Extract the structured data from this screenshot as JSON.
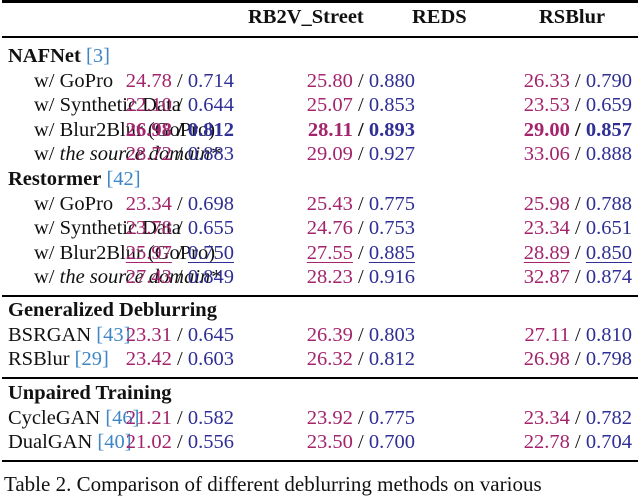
{
  "table": {
    "columns": [
      "RB2V_Street",
      "REDS",
      "RSBlur"
    ],
    "groups": [
      {
        "title": "NAFNet",
        "ref": "3",
        "rows": [
          {
            "prefix": "w/ ",
            "label": "GoPro",
            "italic": false,
            "style": "normal",
            "values": [
              [
                "24.78",
                "0.714"
              ],
              [
                "25.80",
                "0.880"
              ],
              [
                "26.33",
                "0.790"
              ]
            ]
          },
          {
            "prefix": "w/ ",
            "label": "Synthetic Data",
            "italic": false,
            "style": "normal",
            "values": [
              [
                "22.10",
                "0.644"
              ],
              [
                "25.07",
                "0.853"
              ],
              [
                "23.53",
                "0.659"
              ]
            ]
          },
          {
            "prefix": "w/ ",
            "label": "Blur2Blur (GoPro)",
            "italic": false,
            "style": "bold",
            "values": [
              [
                "26.98",
                "0.812"
              ],
              [
                "28.11",
                "0.893"
              ],
              [
                "29.00",
                "0.857"
              ]
            ]
          },
          {
            "prefix": "w/ ",
            "label": "the source domain*",
            "italic": true,
            "style": "normal",
            "values": [
              [
                "28.72",
                "0.883"
              ],
              [
                "29.09",
                "0.927"
              ],
              [
                "33.06",
                "0.888"
              ]
            ]
          }
        ]
      },
      {
        "title": "Restormer",
        "ref": "42",
        "rows": [
          {
            "prefix": "w/ ",
            "label": "GoPro",
            "italic": false,
            "style": "normal",
            "values": [
              [
                "23.34",
                "0.698"
              ],
              [
                "25.43",
                "0.775"
              ],
              [
                "25.98",
                "0.788"
              ]
            ]
          },
          {
            "prefix": "w/ ",
            "label": "Synthetic Data",
            "italic": false,
            "style": "normal",
            "values": [
              [
                "23.78",
                "0.655"
              ],
              [
                "24.76",
                "0.753"
              ],
              [
                "23.34",
                "0.651"
              ]
            ]
          },
          {
            "prefix": "w/ ",
            "label": "Blur2Blur (GoPro)",
            "italic": false,
            "style": "underline",
            "values": [
              [
                "25.97",
                "0.750"
              ],
              [
                "27.55",
                "0.885"
              ],
              [
                "28.89",
                "0.850"
              ]
            ]
          },
          {
            "prefix": "w/ ",
            "label": "the source domain*",
            "italic": true,
            "style": "normal",
            "values": [
              [
                "27.43",
                "0.849"
              ],
              [
                "28.23",
                "0.916"
              ],
              [
                "32.87",
                "0.874"
              ]
            ]
          }
        ]
      },
      {
        "title": "Generalized Deblurring",
        "rows": [
          {
            "label": "BSRGAN",
            "ref": "43",
            "values": [
              [
                "23.31",
                "0.645"
              ],
              [
                "26.39",
                "0.803"
              ],
              [
                "27.11",
                "0.810"
              ]
            ]
          },
          {
            "label": "RSBlur",
            "ref": "29",
            "values": [
              [
                "23.42",
                "0.603"
              ],
              [
                "26.32",
                "0.812"
              ],
              [
                "26.98",
                "0.798"
              ]
            ]
          }
        ]
      },
      {
        "title": "Unpaired Training",
        "rows": [
          {
            "label": "CycleGAN",
            "ref": "46",
            "values": [
              [
                "21.21",
                "0.582"
              ],
              [
                "23.92",
                "0.775"
              ],
              [
                "23.34",
                "0.782"
              ]
            ]
          },
          {
            "label": "DualGAN",
            "ref": "40",
            "values": [
              [
                "21.02",
                "0.556"
              ],
              [
                "23.50",
                "0.700"
              ],
              [
                "22.78",
                "0.704"
              ]
            ]
          }
        ]
      }
    ],
    "separator": " / ",
    "colors": {
      "psnr": "#a3246c",
      "ssim": "#2f2f95",
      "ref": "#3f86c7"
    }
  },
  "caption": "Table 2. Comparison of different deblurring methods on various"
}
